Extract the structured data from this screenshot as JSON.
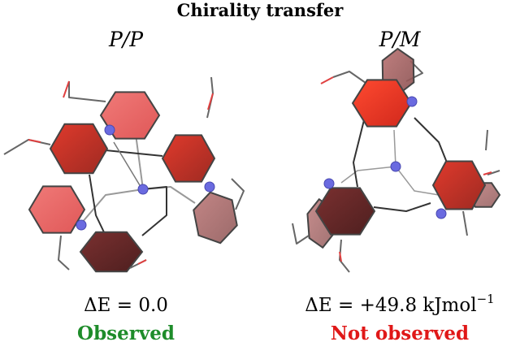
{
  "title": "Chirality transfer",
  "panels": [
    {
      "label": "P/P",
      "energy": "ΔE = 0.0",
      "status": "Observed"
    },
    {
      "label": "P/M",
      "energy": "ΔE = +49.8 kJmol",
      "energy_exponent": "−1",
      "status": "Not observed"
    }
  ]
}
